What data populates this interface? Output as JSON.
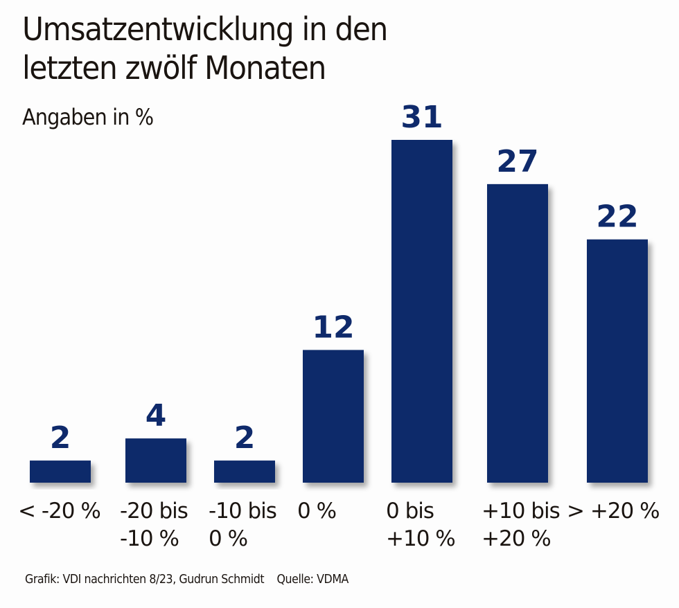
{
  "chart_data": {
    "type": "bar",
    "title": "Umsatzentwicklung in den letzten zwölf Monaten",
    "title_lines": [
      "Umsatzentwicklung in den",
      "letzten zwölf Monaten"
    ],
    "subtitle": "Angaben in %",
    "xlabel": "",
    "ylabel": "",
    "categories": [
      [
        "< -20 %"
      ],
      [
        "-20 bis",
        "-10 %"
      ],
      [
        "-10 bis",
        "0 %"
      ],
      [
        "0 %"
      ],
      [
        "0 bis",
        "+10 %"
      ],
      [
        "+10 bis",
        "+20 %"
      ],
      [
        "> +20 %"
      ]
    ],
    "values": [
      2,
      4,
      2,
      12,
      31,
      27,
      22
    ],
    "ylim": [
      0,
      31
    ],
    "grid": false,
    "bar_color": "#0f2a6b",
    "data_labels": true
  },
  "footer": {
    "credit": "Grafik: VDI nachrichten 8/23, Gudrun Schmidt",
    "source": "Quelle: VDMA"
  }
}
